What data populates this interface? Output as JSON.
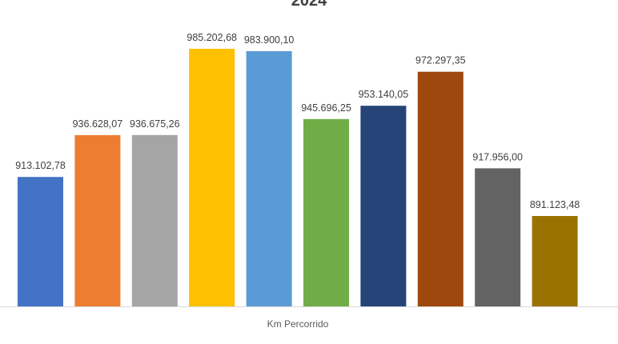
{
  "chart_data": {
    "type": "bar",
    "title": "2024",
    "xlabel": "Km Percorrido",
    "ylabel": "",
    "categories": [
      "Km Percorrido"
    ],
    "series": [
      {
        "values": [
          913102.78
        ],
        "label": "913.102,78",
        "color": "#4472C4"
      },
      {
        "values": [
          936628.07
        ],
        "label": "936.628,07",
        "color": "#ED7D31"
      },
      {
        "values": [
          936675.26
        ],
        "label": "936.675,26",
        "color": "#A5A5A5"
      },
      {
        "values": [
          985202.68
        ],
        "label": "985.202,68",
        "color": "#FFC000"
      },
      {
        "values": [
          983900.1
        ],
        "label": "983.900,10",
        "color": "#5B9BD5"
      },
      {
        "values": [
          945696.25
        ],
        "label": "945.696,25",
        "color": "#70AD47"
      },
      {
        "values": [
          953140.05
        ],
        "label": "953.140,05",
        "color": "#264478"
      },
      {
        "values": [
          972297.35
        ],
        "label": "972.297,35",
        "color": "#9E480E"
      },
      {
        "values": [
          917956.0
        ],
        "label": "917.956,00",
        "color": "#636363"
      },
      {
        "values": [
          891123.48
        ],
        "label": "891.123,48",
        "color": "#997300"
      }
    ],
    "ylim": [
      850000,
      1000000
    ],
    "grid": false,
    "legend": "none"
  }
}
